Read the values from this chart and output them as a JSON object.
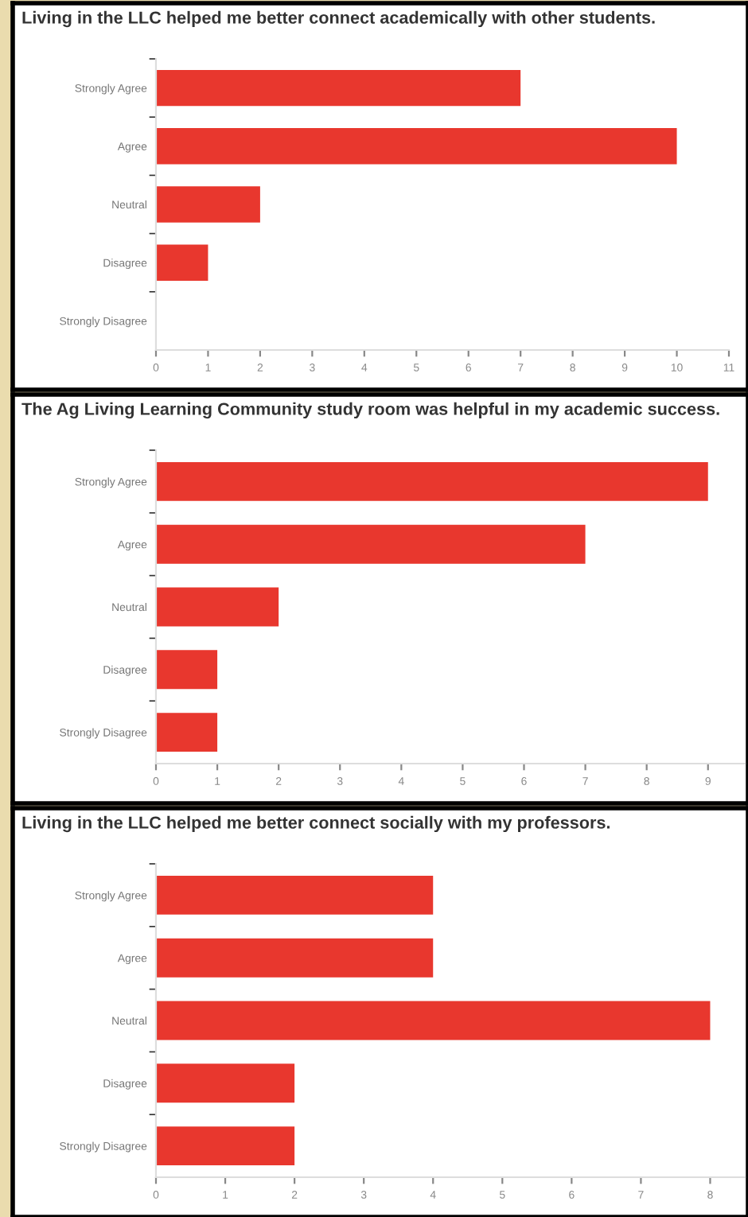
{
  "chart_data": [
    {
      "type": "bar",
      "orientation": "horizontal",
      "title": "Living in the LLC helped me better connect academically with other students.",
      "categories": [
        "Strongly Agree",
        "Agree",
        "Neutral",
        "Disagree",
        "Strongly Disagree"
      ],
      "values": [
        7,
        10,
        2,
        1,
        0
      ],
      "color": "#e8372e",
      "xlim": [
        0,
        11
      ],
      "xticks": [
        0,
        1,
        2,
        3,
        4,
        5,
        6,
        7,
        8,
        9,
        10,
        11
      ],
      "grid": false
    },
    {
      "type": "bar",
      "orientation": "horizontal",
      "title": "The Ag Living Learning Community study room was helpful in my academic success.",
      "categories": [
        "Strongly Agree",
        "Agree",
        "Neutral",
        "Disagree",
        "Strongly Disagree"
      ],
      "values": [
        9,
        7,
        2,
        1,
        1
      ],
      "color": "#e8372e",
      "xlim": [
        0,
        9.6
      ],
      "xticks": [
        0,
        1,
        2,
        3,
        4,
        5,
        6,
        7,
        8,
        9
      ],
      "grid": false
    },
    {
      "type": "bar",
      "orientation": "horizontal",
      "title": "Living in the LLC helped me better connect socially with my professors.",
      "categories": [
        "Strongly Agree",
        "Agree",
        "Neutral",
        "Disagree",
        "Strongly Disagree"
      ],
      "values": [
        4,
        4,
        8,
        2,
        2
      ],
      "color": "#e8372e",
      "xlim": [
        0,
        8.5
      ],
      "xticks": [
        0,
        1,
        2,
        3,
        4,
        5,
        6,
        7,
        8
      ],
      "grid": false
    }
  ]
}
